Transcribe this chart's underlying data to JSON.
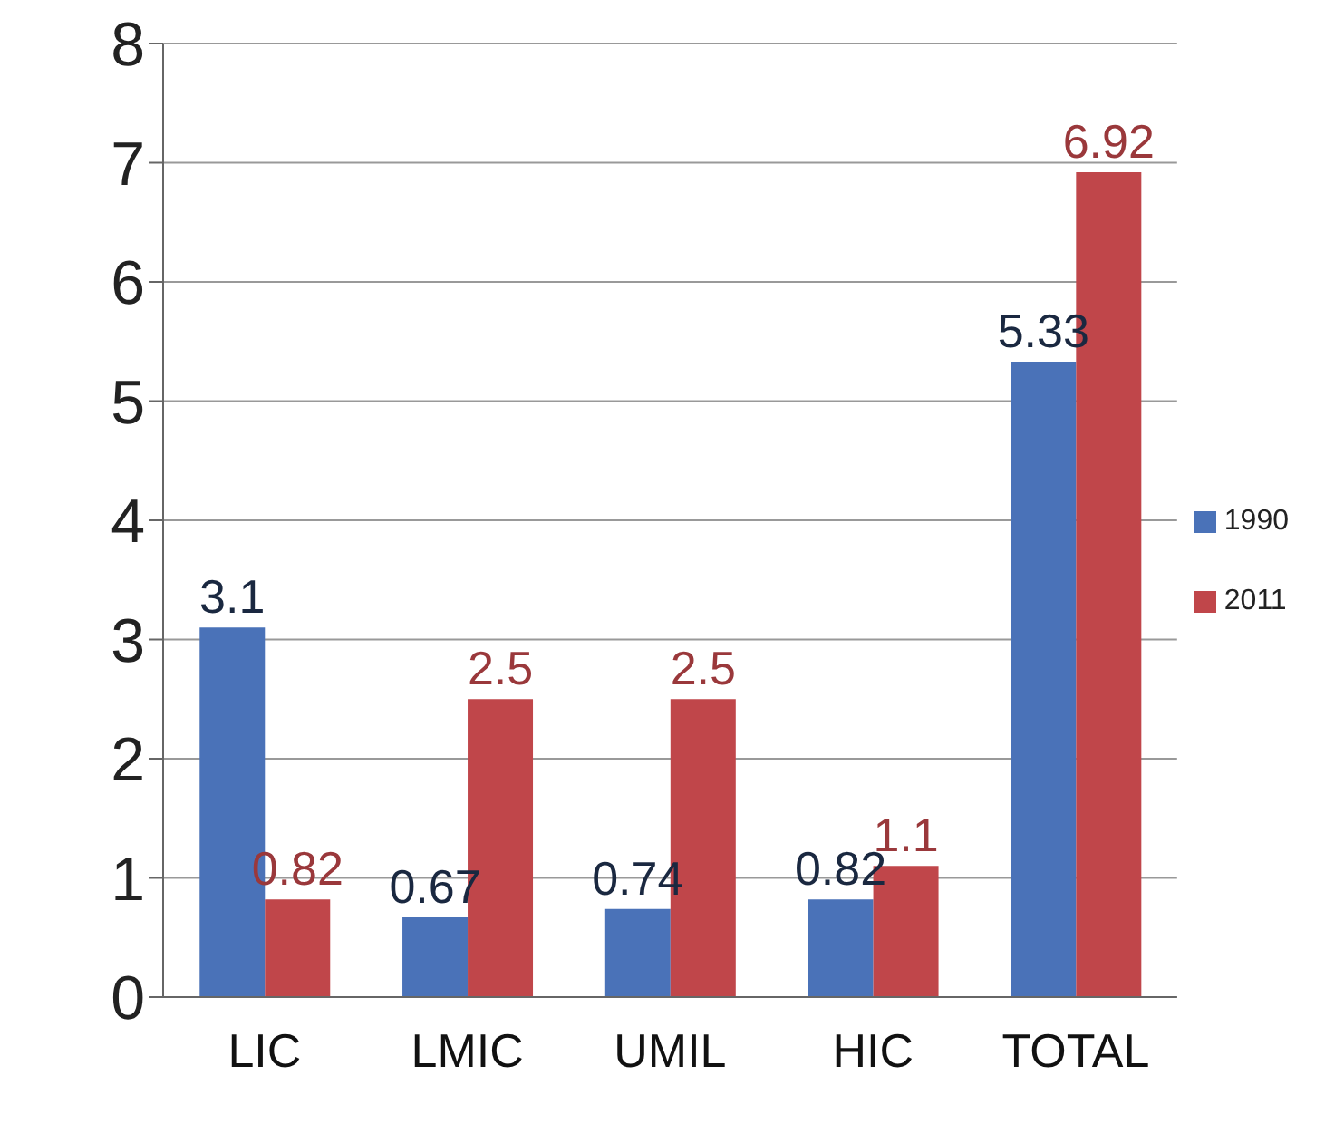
{
  "chart_data": {
    "type": "bar",
    "categories": [
      "LIC",
      "LMIC",
      "UMIL",
      "HIC",
      "TOTAL"
    ],
    "series": [
      {
        "name": "1990",
        "color": "#4a72b8",
        "values": [
          3.1,
          0.67,
          0.74,
          0.82,
          5.33
        ]
      },
      {
        "name": "2011",
        "color": "#c0464a",
        "values": [
          0.82,
          2.5,
          2.5,
          1.1,
          6.92
        ]
      }
    ],
    "ylim": [
      0,
      8
    ],
    "yticks": [
      0,
      1,
      2,
      3,
      4,
      5,
      6,
      7,
      8
    ],
    "grid": "y",
    "legend": "right",
    "data_labels": true
  }
}
